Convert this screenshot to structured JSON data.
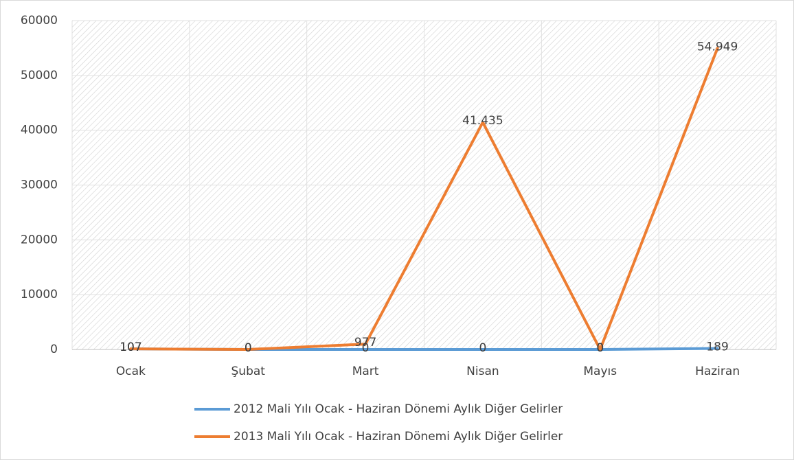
{
  "chart_data": {
    "type": "line",
    "categories": [
      "Ocak",
      "Şubat",
      "Mart",
      "Nisan",
      "Mayıs",
      "Haziran"
    ],
    "series": [
      {
        "name": "2012 Mali Yılı Ocak - Haziran Dönemi Aylık Diğer Gelirler",
        "color": "#5b9bd5",
        "values": [
          107,
          0,
          0,
          0,
          0,
          189
        ]
      },
      {
        "name": "2013 Mali Yılı Ocak - Haziran  Dönemi Aylık Diğer Gelirler",
        "color": "#ed7d31",
        "values": [
          107,
          0,
          977,
          41435,
          0,
          54949
        ],
        "value_labels": [
          "107",
          "0",
          "977",
          "41.435",
          "0",
          "54.949"
        ]
      }
    ],
    "ylim": [
      0,
      60000
    ],
    "yticks": [
      0,
      10000,
      20000,
      30000,
      40000,
      50000,
      60000
    ],
    "grid": true,
    "legend": "bottom"
  }
}
